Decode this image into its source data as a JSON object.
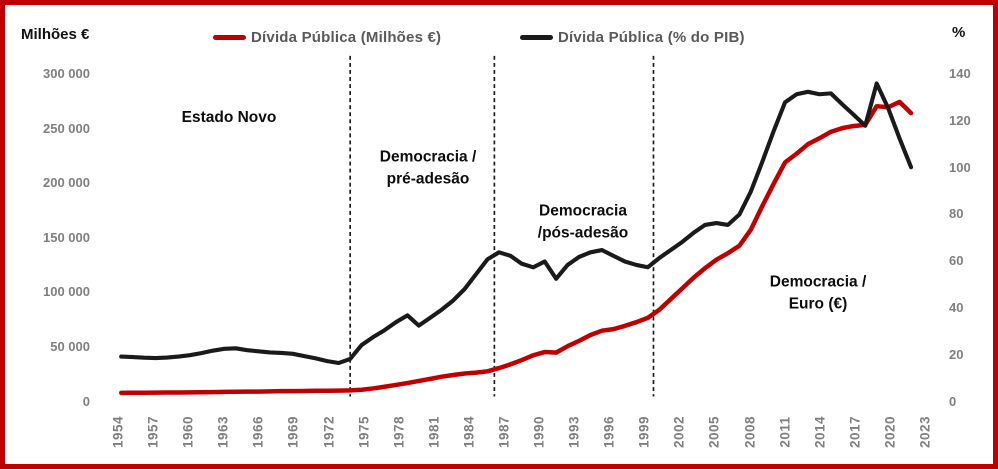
{
  "chart_data": {
    "type": "line",
    "title": "",
    "legend_position": "top",
    "grid": false,
    "left_axis": {
      "title": "Milhões €",
      "range": [
        0,
        300000
      ],
      "ticks": [
        {
          "label": "300 000",
          "value": 300000
        },
        {
          "label": "250 000",
          "value": 250000
        },
        {
          "label": "200 000",
          "value": 200000
        },
        {
          "label": "150 000",
          "value": 150000
        },
        {
          "label": "100 000",
          "value": 100000
        },
        {
          "label": "50 000",
          "value": 50000
        },
        {
          "label": "0",
          "value": 0
        }
      ]
    },
    "right_axis": {
      "title": "%",
      "range": [
        0,
        140
      ],
      "ticks": [
        {
          "label": "140",
          "value": 140
        },
        {
          "label": "120",
          "value": 120
        },
        {
          "label": "100",
          "value": 100
        },
        {
          "label": "80",
          "value": 80
        },
        {
          "label": "60",
          "value": 60
        },
        {
          "label": "40",
          "value": 40
        },
        {
          "label": "20",
          "value": 20
        },
        {
          "label": "0",
          "value": 0
        }
      ]
    },
    "x_axis": {
      "range": [
        1954,
        2023
      ],
      "tick_years": [
        1954,
        1957,
        1960,
        1963,
        1966,
        1969,
        1972,
        1975,
        1978,
        1981,
        1984,
        1987,
        1990,
        1993,
        1996,
        1999,
        2002,
        2005,
        2008,
        2011,
        2014,
        2017,
        2020,
        2023
      ]
    },
    "years": [
      1954,
      1955,
      1956,
      1957,
      1958,
      1959,
      1960,
      1961,
      1962,
      1963,
      1964,
      1965,
      1966,
      1967,
      1968,
      1969,
      1970,
      1971,
      1972,
      1973,
      1974,
      1975,
      1976,
      1977,
      1978,
      1979,
      1980,
      1981,
      1982,
      1983,
      1984,
      1985,
      1986,
      1987,
      1988,
      1989,
      1990,
      1991,
      1992,
      1993,
      1994,
      1995,
      1996,
      1997,
      1998,
      1999,
      2000,
      2001,
      2002,
      2003,
      2004,
      2005,
      2006,
      2007,
      2008,
      2009,
      2010,
      2011,
      2012,
      2013,
      2014,
      2015,
      2016,
      2017,
      2018,
      2019,
      2020,
      2021,
      2022,
      2023
    ],
    "series": [
      {
        "name": "Dívida Pública (Milhões €)",
        "axis": "left",
        "color": "#c00000",
        "values": [
          400,
          450,
          500,
          560,
          620,
          700,
          800,
          950,
          1100,
          1250,
          1400,
          1500,
          1600,
          1750,
          1900,
          2050,
          2150,
          2250,
          2350,
          2450,
          2700,
          3300,
          4500,
          6000,
          7800,
          9500,
          11500,
          13500,
          15500,
          17000,
          18500,
          19300,
          20500,
          23500,
          27000,
          31000,
          35500,
          38500,
          38000,
          44000,
          49000,
          54500,
          58500,
          60000,
          63000,
          66500,
          70500,
          78000,
          88000,
          98000,
          108000,
          117000,
          125000,
          131000,
          138000,
          153000,
          175000,
          196000,
          216000,
          224000,
          233000,
          238500,
          244500,
          248000,
          250000,
          251000,
          268500,
          267500,
          272500,
          262000
        ]
      },
      {
        "name": "Dívida Pública (% do PIB)",
        "axis": "right",
        "color": "#1a1a1a",
        "values": [
          16.0,
          15.8,
          15.5,
          15.4,
          15.6,
          16.0,
          16.6,
          17.5,
          18.6,
          19.4,
          19.6,
          18.8,
          18.3,
          17.8,
          17.6,
          17.2,
          16.2,
          15.2,
          14.0,
          13.2,
          15.0,
          21.0,
          24.5,
          27.5,
          31.0,
          34.0,
          29.5,
          33.0,
          36.5,
          40.5,
          45.5,
          52.0,
          58.5,
          61.5,
          60.0,
          56.5,
          55.0,
          57.5,
          50.0,
          56.0,
          59.5,
          61.5,
          62.5,
          60.0,
          57.5,
          56.0,
          55.0,
          59.0,
          62.5,
          66.0,
          70.0,
          73.5,
          74.3,
          73.5,
          78.0,
          88.0,
          101.0,
          114.5,
          127.0,
          130.5,
          131.6,
          130.5,
          130.9,
          126.1,
          121.5,
          116.8,
          135.2,
          124.5,
          111.2,
          98.7
        ]
      }
    ],
    "dividers": {
      "style": "dashed",
      "color": "#1a1a1a",
      "years": [
        1974,
        1986.6,
        2000.5
      ]
    },
    "annotations": [
      {
        "text": "Estado Novo"
      },
      {
        "text": "Democracia /\npré-adesão"
      },
      {
        "text": "Democracia\n/pós-adesão"
      },
      {
        "text": "Democracia /\nEuro (€)"
      }
    ],
    "colors": {
      "border": "#c00000",
      "tick_text": "#7f7f7f",
      "legend_text": "#595959",
      "axis_line": "#ffffff"
    }
  }
}
